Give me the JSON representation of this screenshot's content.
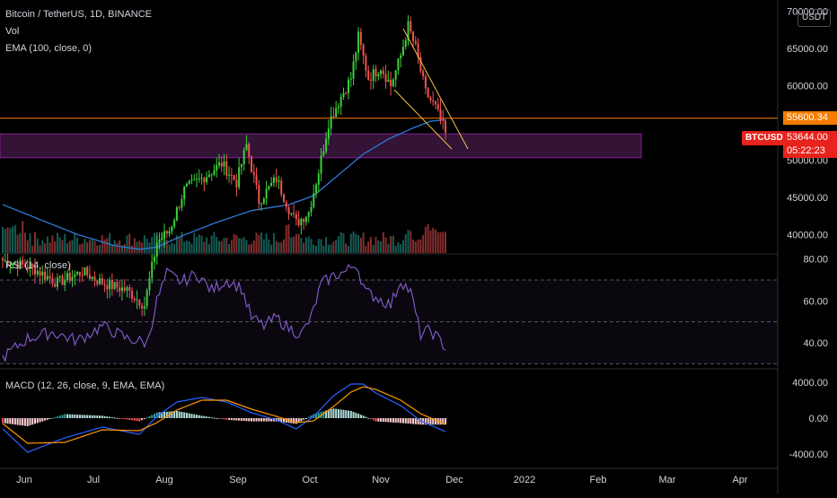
{
  "header": {
    "title": "Bitcoin / TetherUS, 1D, BINANCE",
    "vol_label": "Vol",
    "ema_label": "EMA (100, close, 0)",
    "currency": "USDT"
  },
  "price_tags": {
    "level": "55600.34",
    "symbol": "BTCUSDT",
    "last": "53644.00",
    "countdown": "05:22:23"
  },
  "panes": {
    "rsi_label": "RSI (14, close)",
    "macd_label": "MACD (12, 26, close, 9, EMA, EMA)"
  },
  "colors": {
    "up": "#26a69a",
    "up_bright": "#3ad13a",
    "down": "#ef5350",
    "ema": "#2e7bd6",
    "rsi": "#7e57c2",
    "macd": "#2962ff",
    "signal": "#ff9800",
    "level_line": "#f57c00",
    "zone_fill": "#3c1740",
    "zone_border": "#9c27b0",
    "tag_red": "#e8221c"
  },
  "chart_data": [
    {
      "type": "candlestick",
      "title": "Bitcoin / TetherUS, 1D, BINANCE",
      "x_axis_labels": [
        "Jun",
        "Jul",
        "Aug",
        "Sep",
        "Oct",
        "Nov",
        "Dec",
        "2022",
        "Feb",
        "Mar",
        "Apr"
      ],
      "y_axis_labels": [
        "70000.00",
        "65000.00",
        "60000.00",
        "50000.00",
        "45000.00",
        "40000.00"
      ],
      "ylim": [
        37500,
        71000
      ],
      "series": [
        {
          "name": "BTCUSDT",
          "anchors_close": [
            [
              0,
              36500
            ],
            [
              12,
              35500
            ],
            [
              22,
              33500
            ],
            [
              32,
              35000
            ],
            [
              40,
              33500
            ],
            [
              50,
              32500
            ],
            [
              57,
              30500
            ],
            [
              62,
              39000
            ],
            [
              67,
              40500
            ],
            [
              73,
              46000
            ],
            [
              80,
              47500
            ],
            [
              88,
              49500
            ],
            [
              94,
              47000
            ],
            [
              98,
              52000
            ],
            [
              103,
              44500
            ],
            [
              110,
              47500
            ],
            [
              115,
              43500
            ],
            [
              118,
              41500
            ],
            [
              123,
              43000
            ],
            [
              127,
              48500
            ],
            [
              131,
              55000
            ],
            [
              136,
              58500
            ],
            [
              140,
              61000
            ],
            [
              143,
              66500
            ],
            [
              147,
              61000
            ],
            [
              152,
              62500
            ],
            [
              156,
              60000
            ],
            [
              160,
              64000
            ],
            [
              163,
              68000
            ],
            [
              166,
              65000
            ],
            [
              170,
              59000
            ],
            [
              174,
              57000
            ],
            [
              178,
              53644
            ]
          ]
        },
        {
          "name": "EMA (100, close, 0)",
          "anchors": [
            [
              0,
              44000
            ],
            [
              15,
              42000
            ],
            [
              30,
              40000
            ],
            [
              45,
              38500
            ],
            [
              55,
              38000
            ],
            [
              62,
              38300
            ],
            [
              72,
              39800
            ],
            [
              85,
              41500
            ],
            [
              100,
              43200
            ],
            [
              115,
              44000
            ],
            [
              125,
              45200
            ],
            [
              135,
              48000
            ],
            [
              145,
              50800
            ],
            [
              155,
              52800
            ],
            [
              165,
              54300
            ],
            [
              172,
              55200
            ],
            [
              178,
              55400
            ]
          ]
        },
        {
          "name": "Vol",
          "note": "volume bars along bottom of price pane"
        }
      ],
      "levels": {
        "horizontal_line": 55600.34,
        "zone": [
          50300,
          53500
        ],
        "last": 53644.0
      }
    },
    {
      "type": "line",
      "title": "RSI (14, close)",
      "y_axis_labels": [
        "80.00",
        "60.00",
        "40.00"
      ],
      "ylim": [
        28,
        82
      ],
      "bands": [
        30,
        50,
        70
      ],
      "series": [
        {
          "name": "RSI",
          "anchors": [
            [
              0,
              33
            ],
            [
              10,
              42
            ],
            [
              20,
              45
            ],
            [
              30,
              41
            ],
            [
              40,
              48
            ],
            [
              50,
              42
            ],
            [
              58,
              40
            ],
            [
              62,
              60
            ],
            [
              66,
              73
            ],
            [
              72,
              69
            ],
            [
              78,
              73
            ],
            [
              84,
              65
            ],
            [
              90,
              70
            ],
            [
              96,
              66
            ],
            [
              100,
              52
            ],
            [
              105,
              48
            ],
            [
              110,
              52
            ],
            [
              115,
              47
            ],
            [
              120,
              44
            ],
            [
              124,
              52
            ],
            [
              128,
              68
            ],
            [
              133,
              72
            ],
            [
              138,
              74
            ],
            [
              142,
              78
            ],
            [
              146,
              64
            ],
            [
              150,
              62
            ],
            [
              156,
              58
            ],
            [
              160,
              70
            ],
            [
              164,
              64
            ],
            [
              168,
              44
            ],
            [
              172,
              46
            ],
            [
              178,
              38
            ]
          ]
        }
      ]
    },
    {
      "type": "line",
      "title": "MACD (12, 26, close, 9, EMA, EMA)",
      "y_axis_labels": [
        "4000.00",
        "0.00",
        "-4000.00"
      ],
      "ylim": [
        -5400,
        5400
      ],
      "series": [
        {
          "name": "MACD",
          "anchors": [
            [
              0,
              -1200
            ],
            [
              10,
              -3800
            ],
            [
              25,
              -2200
            ],
            [
              40,
              -1000
            ],
            [
              55,
              -1800
            ],
            [
              62,
              200
            ],
            [
              70,
              1800
            ],
            [
              80,
              2300
            ],
            [
              90,
              1800
            ],
            [
              100,
              600
            ],
            [
              110,
              -200
            ],
            [
              118,
              -1200
            ],
            [
              125,
              200
            ],
            [
              133,
              2500
            ],
            [
              140,
              3800
            ],
            [
              145,
              3800
            ],
            [
              150,
              2800
            ],
            [
              160,
              1400
            ],
            [
              168,
              -300
            ],
            [
              178,
              -1500
            ]
          ]
        },
        {
          "name": "Signal",
          "anchors": [
            [
              0,
              -600
            ],
            [
              10,
              -2800
            ],
            [
              25,
              -2700
            ],
            [
              40,
              -1300
            ],
            [
              55,
              -1400
            ],
            [
              62,
              -500
            ],
            [
              70,
              900
            ],
            [
              80,
              2000
            ],
            [
              90,
              2000
            ],
            [
              100,
              1000
            ],
            [
              110,
              200
            ],
            [
              118,
              -500
            ],
            [
              125,
              -300
            ],
            [
              133,
              1300
            ],
            [
              140,
              2900
            ],
            [
              145,
              3500
            ],
            [
              150,
              3200
            ],
            [
              160,
              2000
            ],
            [
              168,
              500
            ],
            [
              178,
              -700
            ]
          ]
        }
      ]
    }
  ]
}
